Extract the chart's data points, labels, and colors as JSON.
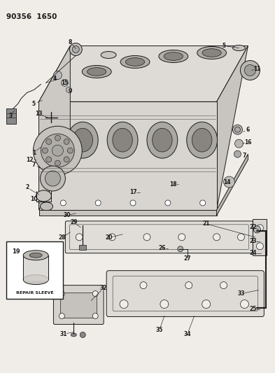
{
  "title": "90356  1650",
  "bg": "#f0ede8",
  "fig_w": 3.93,
  "fig_h": 5.33,
  "dpi": 100,
  "lc": "#1a1a1a",
  "fc_light": "#e8e5e0",
  "fc_mid": "#d0cdc8",
  "fc_dark": "#b8b5b0"
}
